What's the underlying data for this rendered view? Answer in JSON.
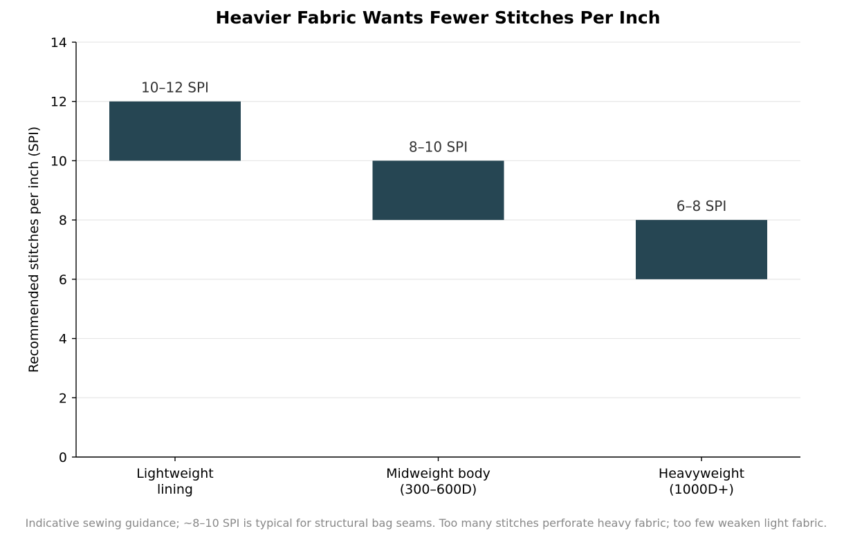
{
  "chart_data": {
    "type": "bar",
    "title": "Heavier Fabric Wants Fewer Stitches Per Inch",
    "xlabel": "",
    "ylabel": "Recommended stitches per inch (SPI)",
    "ylim": [
      0,
      14
    ],
    "yticks": [
      0,
      2,
      4,
      6,
      8,
      10,
      12,
      14
    ],
    "grid": true,
    "categories": [
      [
        "Lightweight",
        "lining"
      ],
      [
        "Midweight body",
        "(300–600D)"
      ],
      [
        "Heavyweight",
        "(1000D+)"
      ]
    ],
    "ranges": [
      {
        "low": 10,
        "high": 12,
        "label": "10–12 SPI"
      },
      {
        "low": 8,
        "high": 10,
        "label": "8–10 SPI"
      },
      {
        "low": 6,
        "high": 8,
        "label": "6–8 SPI"
      }
    ],
    "bar_color": "#264653",
    "footnote": "Indicative sewing guidance; ~8–10 SPI is typical for structural bag seams. Too many stitches perforate heavy fabric; too few weaken light fabric."
  }
}
